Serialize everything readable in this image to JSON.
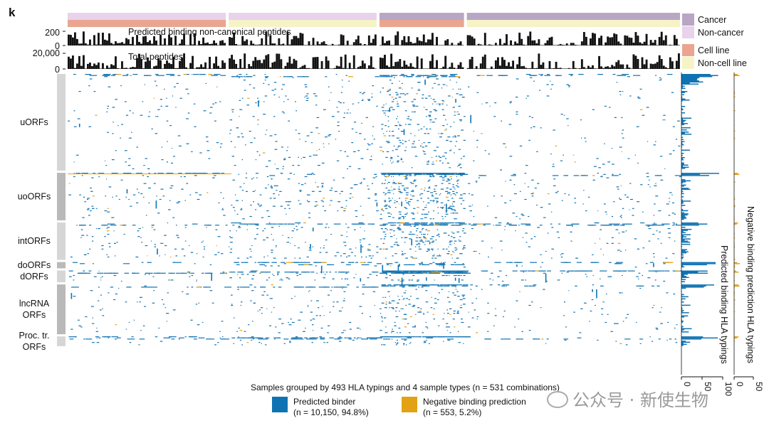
{
  "panel_label": "k",
  "colors": {
    "cancer": "#b9a6c4",
    "non_cancer": "#e9d2ec",
    "cell_line": "#e9a590",
    "non_cell_line": "#f6f3c6",
    "predicted_binder": "#0f73b3",
    "negative_binding": "#e3a114",
    "orf_gray_light": "#d6d6d6",
    "orf_gray_dark": "#b9b9b9"
  },
  "legend_tracks": [
    {
      "label": "Cancer",
      "color": "#b9a6c4"
    },
    {
      "label": "Non-cancer",
      "color": "#e9d2ec"
    },
    {
      "label": "Cell line",
      "color": "#e9a590"
    },
    {
      "label": "Non-cell line",
      "color": "#f6f3c6"
    }
  ],
  "bottom_legend": {
    "binder_line1": "Predicted binder",
    "binder_line2": "(n = 10,150, 94.8%)",
    "negative_line1": "Negative binding prediction",
    "negative_line2": "(n = 553, 5.2%)"
  },
  "caption": "Samples grouped by 493 HLA typings and 4 sample types (n = 531 combinations)",
  "watermark": "公众号 · 新使生物",
  "chart_data": [
    {
      "type": "bar",
      "title": "Predicted binding non-canonical peptides",
      "yticks": [
        "200",
        "0"
      ],
      "ylim": [
        0,
        250
      ],
      "n_bars": 531,
      "bar_values_summary": "one bar per sample group, mostly below 50 with sparse peaks near 200"
    },
    {
      "type": "bar",
      "title": "Total peptides",
      "yticks": [
        "20,000",
        "0"
      ],
      "ylim": [
        0,
        25000
      ],
      "n_bars": 531,
      "bar_values_summary": "one bar per sample group, typically 2,000 to 10,000 with peaks near 20,000"
    },
    {
      "type": "heatmap",
      "rows": [
        {
          "name": "uORFs",
          "share": 0.336
        },
        {
          "name": "uoORFs",
          "share": 0.165
        },
        {
          "name": "intORFs",
          "share": 0.13
        },
        {
          "name": "doORFs",
          "share": 0.022
        },
        {
          "name": "dORFs",
          "share": 0.041
        },
        {
          "name": "lncRNA\nORFs",
          "share": 0.173
        },
        {
          "name": "Proc. tr.\nORFs",
          "share": 0.034
        }
      ],
      "column_groups": [
        {
          "cancer": false,
          "cell_line": true,
          "share": 0.262
        },
        {
          "cancer": false,
          "cell_line": false,
          "share": 0.245
        },
        {
          "cancer": true,
          "cell_line": true,
          "share": 0.14
        },
        {
          "cancer": true,
          "cell_line": false,
          "share": 0.353
        }
      ],
      "cell_values": [
        "Predicted binder",
        "Negative binding prediction"
      ],
      "counts": {
        "predicted_binder": 10150,
        "negative_binding": 553
      }
    },
    {
      "type": "bar",
      "orientation": "horizontal",
      "ylabel": "Predicted binding HLA typings",
      "xticks": [
        "0",
        "50",
        "100"
      ],
      "xlim": [
        0,
        100
      ]
    },
    {
      "type": "bar",
      "orientation": "horizontal",
      "ylabel": "Negative binding prediction HLA typings",
      "xticks": [
        "0",
        "50"
      ],
      "xlim": [
        0,
        50
      ]
    }
  ]
}
